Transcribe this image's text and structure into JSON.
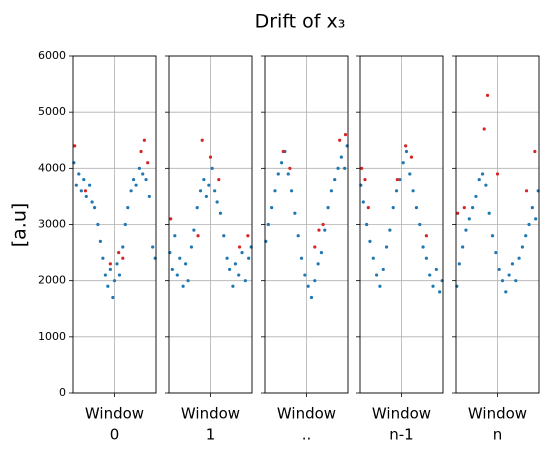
{
  "title": "Drift of x₃",
  "ylabel": "[a.u]",
  "chart_data": [
    {
      "type": "scatter",
      "xlabel": [
        "Window",
        "0"
      ],
      "xlim": [
        0,
        1
      ],
      "xticks": [
        0.5
      ],
      "ylim": [
        0,
        6000
      ],
      "yticks": [
        0,
        1000,
        2000,
        3000,
        4000,
        5000,
        6000
      ],
      "grid": true,
      "series": [
        {
          "color": "#1f77b4",
          "x": [
            0.01,
            0.04,
            0.07,
            0.1,
            0.13,
            0.16,
            0.2,
            0.23,
            0.26,
            0.3,
            0.33,
            0.36,
            0.39,
            0.42,
            0.45,
            0.48,
            0.5,
            0.53,
            0.56,
            0.6,
            0.63,
            0.66,
            0.7,
            0.73,
            0.76,
            0.8,
            0.84,
            0.88,
            0.92,
            0.96,
            0.99
          ],
          "values": [
            4100,
            3700,
            3900,
            3600,
            3800,
            3500,
            3700,
            3400,
            3300,
            3000,
            2700,
            2400,
            2100,
            1900,
            2200,
            1700,
            2000,
            2300,
            2100,
            2600,
            3000,
            3300,
            3600,
            3800,
            3700,
            4000,
            3900,
            3800,
            3500,
            2600,
            2400
          ]
        },
        {
          "color": "#d62728",
          "x": [
            0.02,
            0.15,
            0.45,
            0.55,
            0.82,
            0.86,
            0.9,
            0.6
          ],
          "values": [
            4400,
            3600,
            2300,
            2500,
            4300,
            4500,
            4100,
            2400
          ]
        }
      ]
    },
    {
      "type": "scatter",
      "xlabel": [
        "Window",
        "1"
      ],
      "xlim": [
        0,
        1
      ],
      "xticks": [
        0.5
      ],
      "ylim": [
        0,
        6000
      ],
      "yticks": [
        0,
        1000,
        2000,
        3000,
        4000,
        5000,
        6000
      ],
      "grid": true,
      "series": [
        {
          "color": "#1f77b4",
          "x": [
            0.01,
            0.04,
            0.07,
            0.1,
            0.13,
            0.17,
            0.2,
            0.23,
            0.27,
            0.3,
            0.34,
            0.38,
            0.42,
            0.45,
            0.48,
            0.52,
            0.55,
            0.58,
            0.62,
            0.66,
            0.7,
            0.73,
            0.77,
            0.8,
            0.84,
            0.88,
            0.92,
            0.96,
            0.99
          ],
          "values": [
            2500,
            2200,
            2800,
            2100,
            2400,
            1900,
            2300,
            2000,
            2600,
            2900,
            3300,
            3600,
            3800,
            3500,
            3700,
            4000,
            3600,
            3400,
            3200,
            2800,
            2400,
            2200,
            1900,
            2300,
            2100,
            2500,
            2000,
            2400,
            2600
          ]
        },
        {
          "color": "#d62728",
          "x": [
            0.02,
            0.35,
            0.4,
            0.5,
            0.6,
            0.85,
            0.95
          ],
          "values": [
            3100,
            2800,
            4500,
            4200,
            3800,
            2600,
            2800
          ]
        }
      ]
    },
    {
      "type": "scatter",
      "xlabel": [
        "Window",
        ".."
      ],
      "xlim": [
        0,
        1
      ],
      "xticks": [
        0.5
      ],
      "ylim": [
        0,
        6000
      ],
      "yticks": [
        0,
        1000,
        2000,
        3000,
        4000,
        5000,
        6000
      ],
      "grid": true,
      "series": [
        {
          "color": "#1f77b4",
          "x": [
            0.01,
            0.04,
            0.08,
            0.12,
            0.16,
            0.2,
            0.24,
            0.28,
            0.32,
            0.36,
            0.4,
            0.44,
            0.48,
            0.52,
            0.56,
            0.6,
            0.64,
            0.68,
            0.72,
            0.76,
            0.8,
            0.84,
            0.88,
            0.92,
            0.96,
            0.99
          ],
          "values": [
            2700,
            3000,
            3300,
            3600,
            3900,
            4100,
            4300,
            3900,
            3600,
            3200,
            2800,
            2400,
            2100,
            1900,
            1700,
            2000,
            2300,
            2500,
            2900,
            3300,
            3600,
            3800,
            4000,
            4200,
            4000,
            4400
          ]
        },
        {
          "color": "#d62728",
          "x": [
            0.22,
            0.3,
            0.6,
            0.65,
            0.7,
            0.9,
            0.97
          ],
          "values": [
            4300,
            4000,
            2600,
            2900,
            3000,
            4500,
            4600
          ]
        }
      ]
    },
    {
      "type": "scatter",
      "xlabel": [
        "Window",
        "n-1"
      ],
      "xlim": [
        0,
        1
      ],
      "xticks": [
        0.5
      ],
      "ylim": [
        0,
        6000
      ],
      "yticks": [
        0,
        1000,
        2000,
        3000,
        4000,
        5000,
        6000
      ],
      "grid": true,
      "series": [
        {
          "color": "#1f77b4",
          "x": [
            0.01,
            0.04,
            0.08,
            0.12,
            0.16,
            0.2,
            0.24,
            0.28,
            0.32,
            0.36,
            0.4,
            0.44,
            0.48,
            0.52,
            0.56,
            0.6,
            0.64,
            0.68,
            0.72,
            0.76,
            0.8,
            0.84,
            0.88,
            0.92,
            0.96,
            0.99
          ],
          "values": [
            3700,
            3400,
            3000,
            2700,
            2400,
            2100,
            1900,
            2200,
            2600,
            2900,
            3300,
            3600,
            3800,
            4100,
            4300,
            3900,
            3600,
            3300,
            3000,
            2600,
            2400,
            2100,
            1900,
            2200,
            1800,
            2000
          ]
        },
        {
          "color": "#d62728",
          "x": [
            0.02,
            0.06,
            0.1,
            0.45,
            0.55,
            0.62,
            0.8
          ],
          "values": [
            4000,
            3800,
            3300,
            3800,
            4400,
            4200,
            2800
          ]
        }
      ]
    },
    {
      "type": "scatter",
      "xlabel": [
        "Window",
        "n"
      ],
      "xlim": [
        0,
        1
      ],
      "xticks": [
        0.5
      ],
      "ylim": [
        0,
        6000
      ],
      "yticks": [
        0,
        1000,
        2000,
        3000,
        4000,
        5000,
        6000
      ],
      "grid": true,
      "series": [
        {
          "color": "#1f77b4",
          "x": [
            0.01,
            0.04,
            0.08,
            0.12,
            0.16,
            0.2,
            0.24,
            0.28,
            0.32,
            0.36,
            0.4,
            0.44,
            0.48,
            0.52,
            0.56,
            0.6,
            0.64,
            0.68,
            0.72,
            0.76,
            0.8,
            0.84,
            0.88,
            0.92,
            0.96,
            0.99
          ],
          "values": [
            1900,
            2300,
            2600,
            2900,
            3100,
            3300,
            3500,
            3800,
            3900,
            3700,
            3200,
            2800,
            2500,
            2200,
            2000,
            1800,
            2100,
            2300,
            2000,
            2400,
            2600,
            2800,
            3000,
            3300,
            3100,
            3600
          ]
        },
        {
          "color": "#d62728",
          "x": [
            0.02,
            0.1,
            0.34,
            0.38,
            0.5,
            0.85,
            0.95
          ],
          "values": [
            3200,
            3300,
            4700,
            5300,
            3900,
            3600,
            4300
          ]
        }
      ]
    }
  ]
}
